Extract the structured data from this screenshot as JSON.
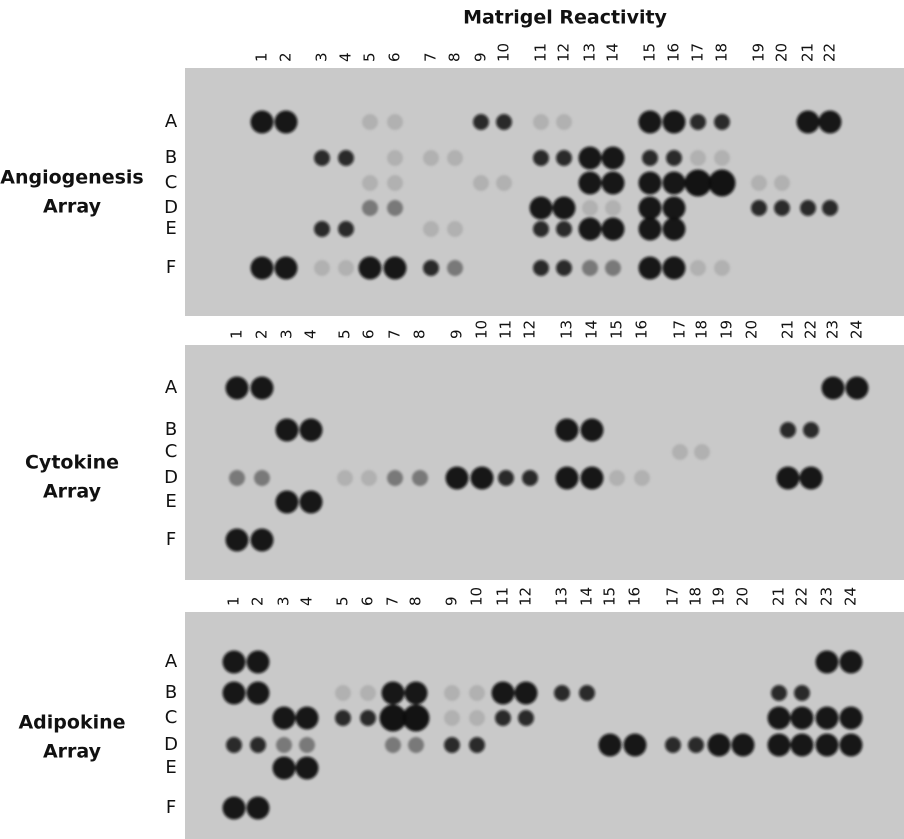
{
  "title": "Matrigel Reactivity",
  "panels": [
    {
      "label": [
        "Angiogenesis",
        "Array"
      ],
      "columns": [
        "1",
        "2",
        "3",
        "4",
        "5",
        "6",
        "7",
        "8",
        "9",
        "10",
        "11",
        "12",
        "13",
        "14",
        "15",
        "16",
        "17",
        "18",
        "19",
        "20",
        "21",
        "22"
      ],
      "rows": [
        "A",
        "B",
        "C",
        "D",
        "E",
        "F"
      ]
    },
    {
      "label": [
        "Cytokine",
        "Array"
      ],
      "columns": [
        "1",
        "2",
        "3",
        "4",
        "5",
        "6",
        "7",
        "8",
        "9",
        "10",
        "11",
        "12",
        "13",
        "14",
        "15",
        "16",
        "17",
        "18",
        "19",
        "20",
        "21",
        "22",
        "23",
        "24"
      ],
      "rows": [
        "A",
        "B",
        "C",
        "D",
        "E",
        "F"
      ]
    },
    {
      "label": [
        "Adipokine",
        "Array"
      ],
      "columns": [
        "1",
        "2",
        "3",
        "4",
        "5",
        "6",
        "7",
        "8",
        "9",
        "10",
        "11",
        "12",
        "13",
        "14",
        "15",
        "16",
        "17",
        "18",
        "19",
        "20",
        "21",
        "22",
        "23",
        "24"
      ],
      "rows": [
        "A",
        "B",
        "C",
        "D",
        "E",
        "F"
      ]
    }
  ]
}
